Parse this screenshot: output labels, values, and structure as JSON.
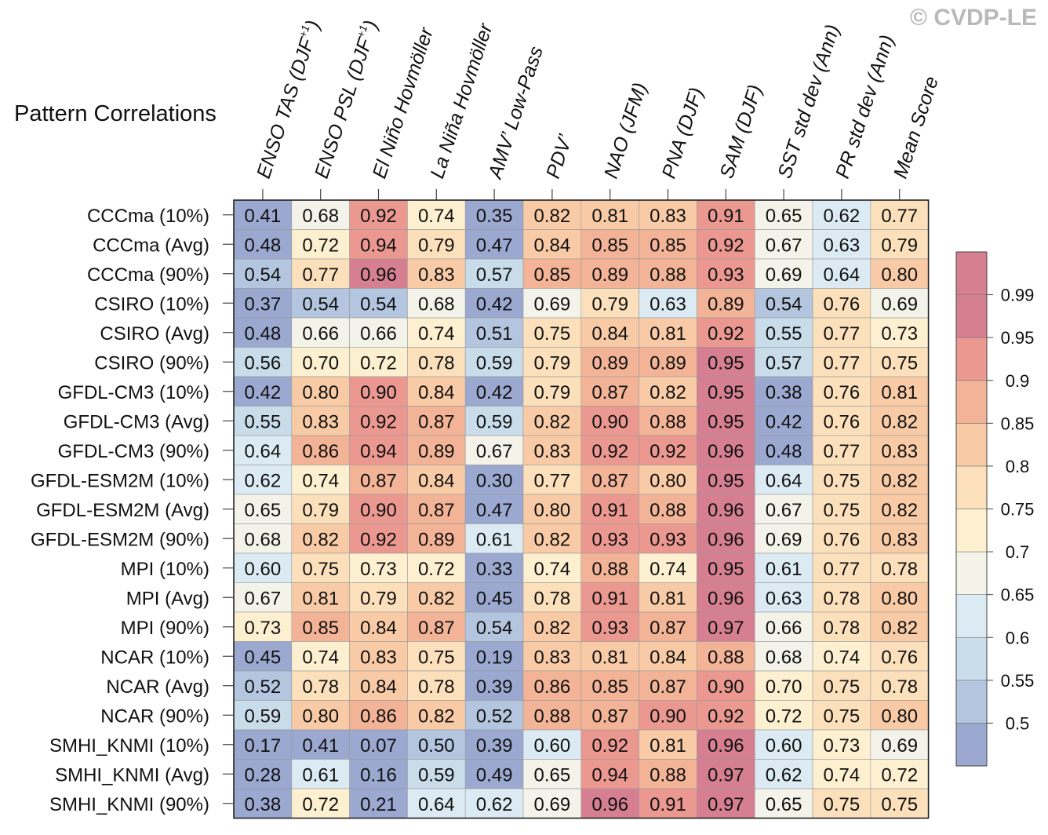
{
  "watermark": "© CVDP-LE",
  "chart_data": {
    "type": "heatmap",
    "title": "Pattern Correlations",
    "columns": [
      {
        "label": "ENSO TAS (DJF",
        "sup": "+1",
        "suffix": ")"
      },
      {
        "label": "ENSO PSL (DJF",
        "sup": "+1",
        "suffix": ")"
      },
      {
        "label": "El Niño Hovmöller"
      },
      {
        "label": "La Niña Hovmöller"
      },
      {
        "label": "AMV’ Low-Pass"
      },
      {
        "label": "PDV’"
      },
      {
        "label": "NAO (JFM)"
      },
      {
        "label": "PNA (DJF)"
      },
      {
        "label": "SAM (DJF)"
      },
      {
        "label": "SST std dev (Ann)"
      },
      {
        "label": "PR std dev (Ann)"
      },
      {
        "label": "Mean Score"
      }
    ],
    "rows": [
      "CCCma (10%)",
      "CCCma (Avg)",
      "CCCma (90%)",
      "CSIRO (10%)",
      "CSIRO (Avg)",
      "CSIRO (90%)",
      "GFDL-CM3 (10%)",
      "GFDL-CM3 (Avg)",
      "GFDL-CM3 (90%)",
      "GFDL-ESM2M (10%)",
      "GFDL-ESM2M (Avg)",
      "GFDL-ESM2M (90%)",
      "MPI (10%)",
      "MPI (Avg)",
      "MPI (90%)",
      "NCAR (10%)",
      "NCAR (Avg)",
      "NCAR (90%)",
      "SMHI_KNMI (10%)",
      "SMHI_KNMI (Avg)",
      "SMHI_KNMI (90%)"
    ],
    "values": [
      [
        "0.41",
        "0.68",
        "0.92",
        "0.74",
        "0.35",
        "0.82",
        "0.81",
        "0.83",
        "0.91",
        "0.65",
        "0.62",
        "0.77"
      ],
      [
        "0.48",
        "0.72",
        "0.94",
        "0.79",
        "0.47",
        "0.84",
        "0.85",
        "0.85",
        "0.92",
        "0.67",
        "0.63",
        "0.79"
      ],
      [
        "0.54",
        "0.77",
        "0.96",
        "0.83",
        "0.57",
        "0.85",
        "0.89",
        "0.88",
        "0.93",
        "0.69",
        "0.64",
        "0.80"
      ],
      [
        "0.37",
        "0.54",
        "0.54",
        "0.68",
        "0.42",
        "0.69",
        "0.79",
        "0.63",
        "0.89",
        "0.54",
        "0.76",
        "0.69"
      ],
      [
        "0.48",
        "0.66",
        "0.66",
        "0.74",
        "0.51",
        "0.75",
        "0.84",
        "0.81",
        "0.92",
        "0.55",
        "0.77",
        "0.73"
      ],
      [
        "0.56",
        "0.70",
        "0.72",
        "0.78",
        "0.59",
        "0.79",
        "0.89",
        "0.89",
        "0.95",
        "0.57",
        "0.77",
        "0.75"
      ],
      [
        "0.42",
        "0.80",
        "0.90",
        "0.84",
        "0.42",
        "0.79",
        "0.87",
        "0.82",
        "0.95",
        "0.38",
        "0.76",
        "0.81"
      ],
      [
        "0.55",
        "0.83",
        "0.92",
        "0.87",
        "0.59",
        "0.82",
        "0.90",
        "0.88",
        "0.95",
        "0.42",
        "0.76",
        "0.82"
      ],
      [
        "0.64",
        "0.86",
        "0.94",
        "0.89",
        "0.67",
        "0.83",
        "0.92",
        "0.92",
        "0.96",
        "0.48",
        "0.77",
        "0.83"
      ],
      [
        "0.62",
        "0.74",
        "0.87",
        "0.84",
        "0.30",
        "0.77",
        "0.87",
        "0.80",
        "0.95",
        "0.64",
        "0.75",
        "0.82"
      ],
      [
        "0.65",
        "0.79",
        "0.90",
        "0.87",
        "0.47",
        "0.80",
        "0.91",
        "0.88",
        "0.96",
        "0.67",
        "0.75",
        "0.82"
      ],
      [
        "0.68",
        "0.82",
        "0.92",
        "0.89",
        "0.61",
        "0.82",
        "0.93",
        "0.93",
        "0.96",
        "0.69",
        "0.76",
        "0.83"
      ],
      [
        "0.60",
        "0.75",
        "0.73",
        "0.72",
        "0.33",
        "0.74",
        "0.88",
        "0.74",
        "0.95",
        "0.61",
        "0.77",
        "0.78"
      ],
      [
        "0.67",
        "0.81",
        "0.79",
        "0.82",
        "0.45",
        "0.78",
        "0.91",
        "0.81",
        "0.96",
        "0.63",
        "0.78",
        "0.80"
      ],
      [
        "0.73",
        "0.85",
        "0.84",
        "0.87",
        "0.54",
        "0.82",
        "0.93",
        "0.87",
        "0.97",
        "0.66",
        "0.78",
        "0.82"
      ],
      [
        "0.45",
        "0.74",
        "0.83",
        "0.75",
        "0.19",
        "0.83",
        "0.81",
        "0.84",
        "0.88",
        "0.68",
        "0.74",
        "0.76"
      ],
      [
        "0.52",
        "0.78",
        "0.84",
        "0.78",
        "0.39",
        "0.86",
        "0.85",
        "0.87",
        "0.90",
        "0.70",
        "0.75",
        "0.78"
      ],
      [
        "0.59",
        "0.80",
        "0.86",
        "0.82",
        "0.52",
        "0.88",
        "0.87",
        "0.90",
        "0.92",
        "0.72",
        "0.75",
        "0.80"
      ],
      [
        "0.17",
        "0.41",
        "0.07",
        "0.50",
        "0.39",
        "0.60",
        "0.92",
        "0.81",
        "0.96",
        "0.60",
        "0.73",
        "0.69"
      ],
      [
        "0.28",
        "0.61",
        "0.16",
        "0.59",
        "0.49",
        "0.65",
        "0.94",
        "0.88",
        "0.97",
        "0.62",
        "0.74",
        "0.72"
      ],
      [
        "0.38",
        "0.72",
        "0.21",
        "0.64",
        "0.62",
        "0.69",
        "0.96",
        "0.91",
        "0.97",
        "0.65",
        "0.75",
        "0.75"
      ]
    ],
    "colorbar": {
      "levels": [
        0.5,
        0.55,
        0.6,
        0.65,
        0.7,
        0.75,
        0.8,
        0.85,
        0.9,
        0.95,
        0.99
      ],
      "tick_labels": [
        "0.5",
        "0.55",
        "0.6",
        "0.65",
        "0.7",
        "0.75",
        "0.8",
        "0.85",
        "0.9",
        "0.95",
        "0.99"
      ],
      "colors": [
        "#9ba8d0",
        "#b4c6df",
        "#c9dcea",
        "#dcebf3",
        "#f3f3ea",
        "#fdf0d0",
        "#fbe0bb",
        "#f8cba6",
        "#f2b396",
        "#eb9891",
        "#d57f91",
        "#d57f91"
      ]
    }
  }
}
